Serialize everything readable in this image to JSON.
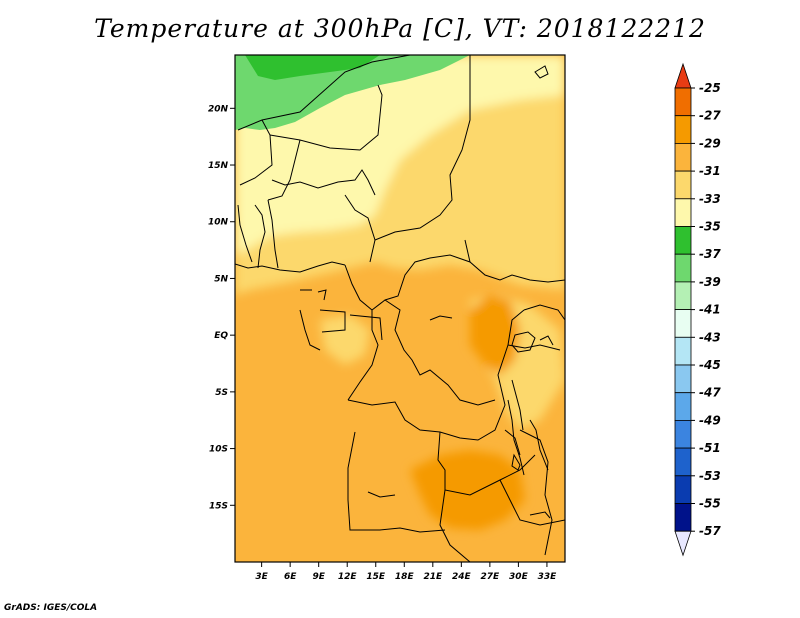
{
  "title": "Temperature at 300hPa [C], VT: 2018122212",
  "credit": "GrADS: IGES/COLA",
  "chart_data": {
    "type": "heatmap",
    "title": "Temperature at 300hPa [C], VT: 2018122212",
    "x_ticks": [
      "3E",
      "6E",
      "9E",
      "12E",
      "15E",
      "18E",
      "21E",
      "24E",
      "27E",
      "30E",
      "33E"
    ],
    "y_ticks": [
      "20N",
      "15N",
      "10N",
      "5N",
      "EQ",
      "5S",
      "10S",
      "15S"
    ],
    "x_tick_values": [
      3,
      6,
      9,
      12,
      15,
      18,
      21,
      24,
      27,
      30,
      33
    ],
    "y_tick_values": [
      20,
      15,
      10,
      5,
      0,
      -5,
      -10,
      -15
    ],
    "lon_range": [
      0.2,
      34.9
    ],
    "lat_range": [
      -20,
      24.7
    ],
    "colorbar": {
      "labels": [
        "-25",
        "-27",
        "-29",
        "-31",
        "-33",
        "-35",
        "-37",
        "-39",
        "-41",
        "-43",
        "-45",
        "-47",
        "-49",
        "-51",
        "-53",
        "-55",
        "-57"
      ],
      "colors": [
        "#e83c14",
        "#f06e00",
        "#f59a00",
        "#fbb43c",
        "#fcd86c",
        "#fef8ac",
        "#2fc02f",
        "#6ed86e",
        "#b4f0b4",
        "#e8fef2",
        "#b4e6f5",
        "#8ac8f0",
        "#5ca8ea",
        "#3b84e0",
        "#1e62cc",
        "#0a3cb0",
        "#00128a"
      ],
      "extends": [
        "above",
        "below"
      ]
    },
    "regions": [
      {
        "name": "north-green",
        "value_range": [
          -39,
          -35
        ],
        "color": "#6ed86e"
      },
      {
        "name": "sahel-pale",
        "value_range": [
          -35,
          -33
        ],
        "color": "#fef8ac"
      },
      {
        "name": "central-light",
        "value_range": [
          -33,
          -31
        ],
        "color": "#fcd86c"
      },
      {
        "name": "equatorial",
        "value_range": [
          -31,
          -29
        ],
        "color": "#fbb43c"
      },
      {
        "name": "warm-core",
        "value_range": [
          -29,
          -27
        ],
        "color": "#f59a00"
      }
    ]
  }
}
